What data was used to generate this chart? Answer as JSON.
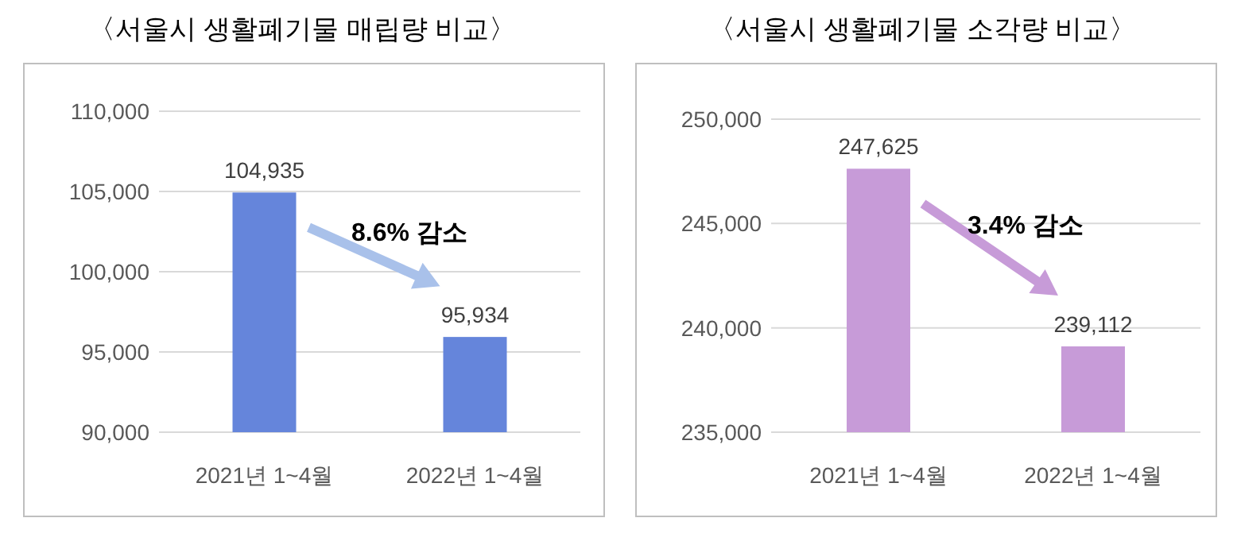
{
  "chart_data": [
    {
      "type": "bar",
      "title": "〈서울시 생활폐기물 매립량 비교〉",
      "categories": [
        "2021년 1~4월",
        "2022년 1~4월"
      ],
      "values": [
        104935,
        95934
      ],
      "value_labels": [
        "104,935",
        "95,934"
      ],
      "color": "#6585db",
      "ylim": [
        90000,
        110000
      ],
      "yticks": [
        {
          "value": 90000,
          "label": "90,000"
        },
        {
          "value": 95000,
          "label": "95,000"
        },
        {
          "value": 100000,
          "label": "100,000"
        },
        {
          "value": 105000,
          "label": "105,000"
        },
        {
          "value": 110000,
          "label": "110,000"
        }
      ],
      "grid": "y",
      "annotations": [
        "8.6% 감소"
      ]
    },
    {
      "type": "bar",
      "title": "〈서울시 생활폐기물 소각량 비교〉",
      "categories": [
        "2021년 1~4월",
        "2022년 1~4월"
      ],
      "values": [
        247625,
        239112
      ],
      "value_labels": [
        "247,625",
        "239,112"
      ],
      "color": "#c79bd8",
      "ylim": [
        235000,
        250000
      ],
      "yticks": [
        {
          "value": 235000,
          "label": "235,000"
        },
        {
          "value": 240000,
          "label": "240,000"
        },
        {
          "value": 245000,
          "label": "245,000"
        },
        {
          "value": 250000,
          "label": "250,000"
        }
      ],
      "grid": "y",
      "annotations": [
        "3.4% 감소"
      ]
    }
  ]
}
